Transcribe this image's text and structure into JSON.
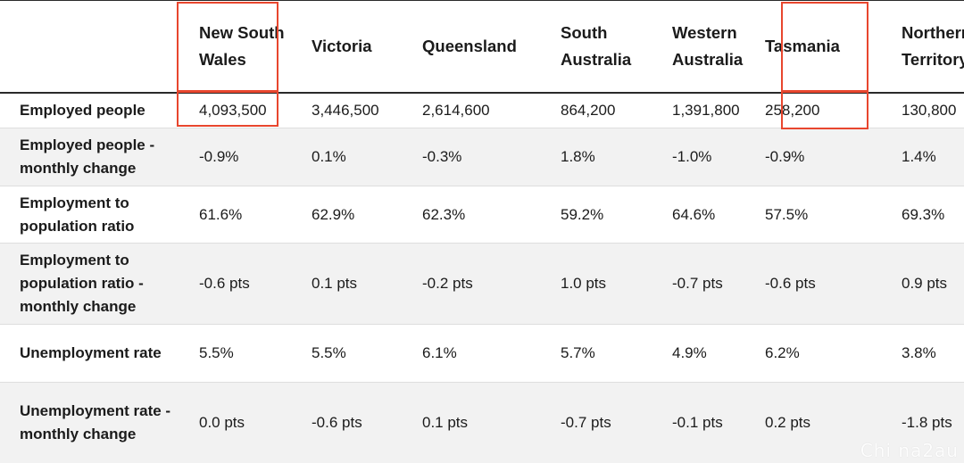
{
  "chart_data": {
    "type": "table",
    "columns": [
      "",
      "New South Wales",
      "Victoria",
      "Queensland",
      "South Australia",
      "Western Australia",
      "Tasmania",
      "Northern Territory"
    ],
    "rows": [
      {
        "label": "Employed people",
        "values": [
          "4,093,500",
          "3,446,500",
          "2,614,600",
          "864,200",
          "1,391,800",
          "258,200",
          "130,800"
        ]
      },
      {
        "label": "Employed people - monthly change",
        "values": [
          "-0.9%",
          "0.1%",
          "-0.3%",
          "1.8%",
          "-1.0%",
          "-0.9%",
          "1.4%"
        ]
      },
      {
        "label": "Employment to population ratio",
        "values": [
          "61.6%",
          "62.9%",
          "62.3%",
          "59.2%",
          "64.6%",
          "57.5%",
          "69.3%"
        ]
      },
      {
        "label": "Employment to population ratio - monthly change",
        "values": [
          "-0.6 pts",
          "0.1 pts",
          "-0.2 pts",
          "1.0 pts",
          "-0.7 pts",
          "-0.6 pts",
          "0.9 pts"
        ]
      },
      {
        "label": "Unemployment rate",
        "values": [
          "5.5%",
          "5.5%",
          "6.1%",
          "5.7%",
          "4.9%",
          "6.2%",
          "3.8%"
        ]
      },
      {
        "label": "Unemployment rate - monthly change",
        "values": [
          "0.0 pts",
          "-0.6 pts",
          "0.1 pts",
          "-0.7 pts",
          "-0.1 pts",
          "0.2 pts",
          "-1.8 pts"
        ]
      }
    ],
    "highlighted_columns": [
      "New South Wales",
      "Tasmania"
    ],
    "highlight_color": "#e8462e"
  },
  "watermark": "Chi na2au"
}
